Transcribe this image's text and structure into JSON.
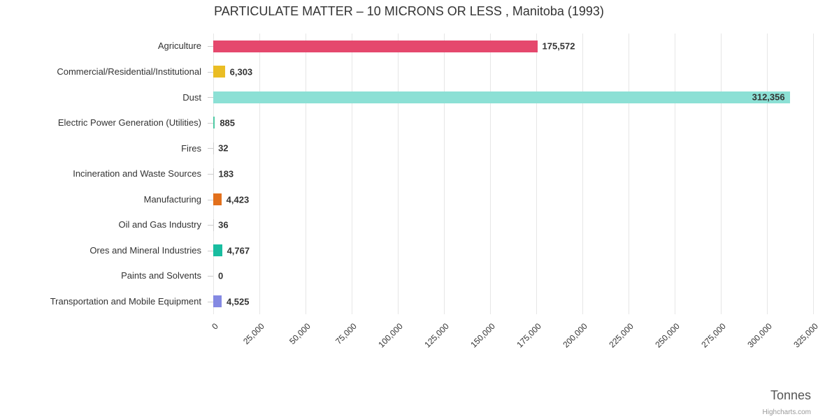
{
  "credit": "Highcharts.com",
  "chart_data": {
    "type": "bar",
    "orientation": "horizontal",
    "title": "PARTICULATE MATTER – 10 MICRONS OR LESS , Manitoba (1993)",
    "xlabel": "Tonnes",
    "ylabel": "",
    "categories": [
      "Agriculture",
      "Commercial/Residential/Institutional",
      "Dust",
      "Electric Power Generation (Utilities)",
      "Fires",
      "Incineration and Waste Sources",
      "Manufacturing",
      "Oil and Gas Industry",
      "Ores and Mineral Industries",
      "Paints and Solvents",
      "Transportation and Mobile Equipment"
    ],
    "values": [
      175572,
      6303,
      312356,
      885,
      32,
      183,
      4423,
      36,
      4767,
      0,
      4525
    ],
    "value_labels": [
      "175,572",
      "6,303",
      "312,356",
      "885",
      "32",
      "183",
      "4,423",
      "36",
      "4,767",
      "0",
      "4,525"
    ],
    "bar_colors": [
      "#e5486d",
      "#eabd24",
      "#8ce0d5",
      "#4ec9a4",
      "#cfcfcf",
      "#cfcfcf",
      "#e2701c",
      "#cfcfcf",
      "#19bda0",
      "#cfcfcf",
      "#8489e2"
    ],
    "xlim": [
      0,
      325000
    ],
    "tick_interval": 25000,
    "tick_labels": [
      "0",
      "25,000",
      "50,000",
      "75,000",
      "100,000",
      "125,000",
      "150,000",
      "175,000",
      "200,000",
      "225,000",
      "250,000",
      "275,000",
      "300,000",
      "325,000"
    ],
    "grid": true,
    "legend": false,
    "grid_color": "#e6e6e6",
    "label_color": "#333333"
  }
}
